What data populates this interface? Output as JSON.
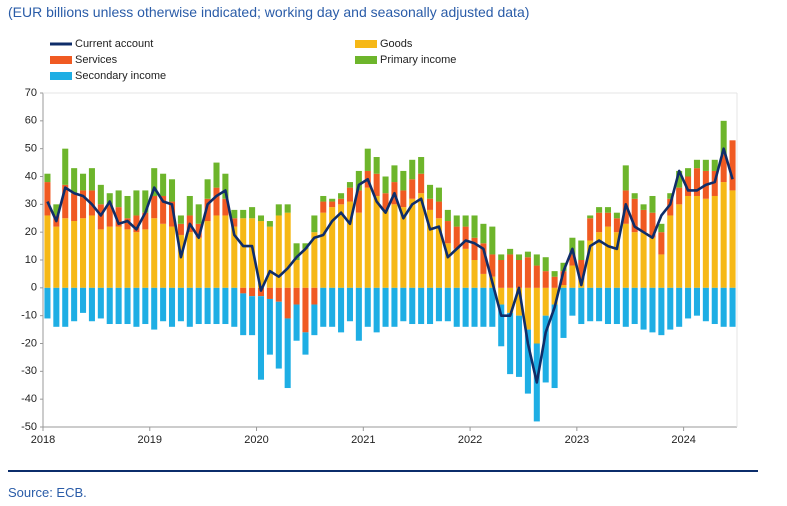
{
  "chart_data": {
    "type": "bar",
    "stacked": true,
    "subtitle": "(EUR billions unless otherwise indicated; working day and seasonally adjusted data)",
    "source": "Source: ECB.",
    "categories": [
      "2018",
      null,
      null,
      null,
      null,
      null,
      null,
      null,
      null,
      null,
      null,
      null,
      "2019",
      null,
      null,
      null,
      null,
      null,
      null,
      null,
      null,
      null,
      null,
      null,
      "2020",
      null,
      null,
      null,
      null,
      null,
      null,
      null,
      null,
      null,
      null,
      null,
      "2021",
      null,
      null,
      null,
      null,
      null,
      null,
      null,
      null,
      null,
      null,
      null,
      "2022",
      null,
      null,
      null,
      null,
      null,
      null,
      null,
      null,
      null,
      null,
      null,
      "2023",
      null,
      null,
      null,
      null,
      null,
      null,
      null,
      null,
      null,
      null,
      null,
      "2024",
      null,
      null,
      null,
      null,
      null
    ],
    "ylim": [
      -50,
      70
    ],
    "yticks": [
      -50,
      -40,
      -30,
      -20,
      -10,
      0,
      10,
      20,
      30,
      40,
      50,
      60,
      70
    ],
    "grid": false,
    "series": [
      {
        "name": "Current account",
        "type": "line",
        "color": "#0f2d69",
        "values": [
          31,
          24,
          36,
          34,
          33,
          30,
          26,
          31,
          23,
          24,
          21,
          27,
          36,
          31,
          30,
          11,
          23,
          18,
          30,
          33,
          35,
          19,
          15,
          15,
          -1,
          6,
          4,
          7,
          11,
          14,
          18,
          19,
          24,
          27,
          23,
          37,
          39,
          31,
          27,
          34,
          25,
          30,
          32,
          21,
          22,
          11,
          14,
          17,
          16,
          14,
          2,
          -10,
          -10,
          0,
          -20,
          -34,
          -16,
          -7,
          6,
          14,
          1,
          15,
          17,
          15,
          14,
          30,
          22,
          20,
          18,
          26,
          30,
          42,
          35,
          35,
          37,
          38,
          50,
          39
        ]
      },
      {
        "name": "Goods",
        "color": "#f6b816",
        "values": [
          26,
          22,
          25,
          24,
          25,
          26,
          21,
          22,
          22,
          21,
          20,
          21,
          25,
          23,
          22,
          19,
          20,
          18,
          24,
          26,
          26,
          22,
          25,
          25,
          24,
          22,
          26,
          27,
          10,
          14,
          20,
          27,
          29,
          30,
          31,
          27,
          36,
          33,
          28,
          30,
          29,
          32,
          34,
          28,
          25,
          16,
          14,
          14,
          10,
          5,
          4,
          -6,
          -9,
          -10,
          -15,
          -20,
          -10,
          -6,
          1,
          8,
          3,
          17,
          20,
          22,
          20,
          23,
          20,
          20,
          18,
          12,
          26,
          30,
          33,
          33,
          32,
          33,
          38,
          35
        ]
      },
      {
        "name": "Services",
        "color": "#f05a22",
        "values": [
          12,
          4,
          12,
          10,
          10,
          9,
          9,
          8,
          7,
          4,
          6,
          6,
          8,
          10,
          9,
          4,
          6,
          5,
          8,
          10,
          6,
          3,
          -2,
          -3,
          -3,
          -4,
          -5,
          -11,
          -6,
          -16,
          -6,
          4,
          2,
          2,
          5,
          8,
          6,
          8,
          6,
          8,
          6,
          7,
          7,
          4,
          6,
          8,
          8,
          8,
          8,
          11,
          8,
          10,
          12,
          10,
          11,
          8,
          6,
          4,
          5,
          4,
          7,
          8,
          7,
          5,
          5,
          12,
          12,
          8,
          9,
          8,
          6,
          6,
          7,
          10,
          10,
          9,
          10,
          18
        ]
      },
      {
        "name": "Primary income",
        "color": "#6db52b",
        "values": [
          3,
          4,
          13,
          9,
          6,
          8,
          7,
          4,
          6,
          8,
          9,
          8,
          10,
          8,
          8,
          3,
          7,
          7,
          7,
          9,
          9,
          3,
          3,
          4,
          2,
          2,
          4,
          3,
          6,
          2,
          6,
          2,
          1,
          2,
          2,
          7,
          8,
          6,
          6,
          6,
          7,
          7,
          6,
          5,
          5,
          4,
          4,
          4,
          8,
          7,
          10,
          2,
          2,
          2,
          2,
          4,
          5,
          2,
          3,
          6,
          7,
          1,
          2,
          2,
          2,
          9,
          2,
          2,
          6,
          3,
          2,
          6,
          3,
          3,
          4,
          4,
          12,
          0
        ]
      },
      {
        "name": "Secondary income",
        "color": "#1eaee4",
        "values": [
          -11,
          -14,
          -14,
          -12,
          -9,
          -12,
          -11,
          -13,
          -13,
          -13,
          -14,
          -13,
          -15,
          -12,
          -14,
          -12,
          -14,
          -13,
          -13,
          -13,
          -13,
          -14,
          -15,
          -14,
          -30,
          -20,
          -24,
          -25,
          -13,
          -8,
          -11,
          -14,
          -14,
          -16,
          -12,
          -19,
          -14,
          -16,
          -14,
          -14,
          -12,
          -13,
          -13,
          -13,
          -12,
          -12,
          -14,
          -14,
          -14,
          -14,
          -14,
          -15,
          -22,
          -22,
          -23,
          -28,
          -24,
          -30,
          -18,
          -10,
          -13,
          -12,
          -12,
          -13,
          -13,
          -14,
          -13,
          -15,
          -16,
          -17,
          -15,
          -14,
          -11,
          -10,
          -12,
          -13,
          -14,
          -14
        ]
      }
    ]
  }
}
